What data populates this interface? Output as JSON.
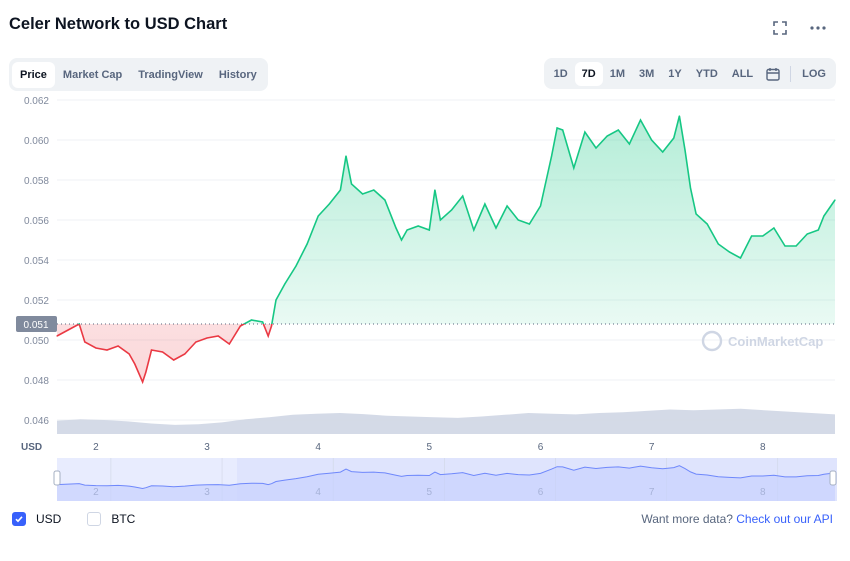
{
  "title": "Celer Network to USD Chart",
  "icons": {
    "fullscreen": "fullscreen-icon",
    "more": "more-icon",
    "calendar": "calendar-icon",
    "check": "check-icon"
  },
  "tabs": [
    {
      "label": "Price",
      "active": true
    },
    {
      "label": "Market Cap",
      "active": false
    },
    {
      "label": "TradingView",
      "active": false
    },
    {
      "label": "History",
      "active": false
    }
  ],
  "ranges": [
    {
      "label": "1D",
      "active": false
    },
    {
      "label": "7D",
      "active": true
    },
    {
      "label": "1M",
      "active": false
    },
    {
      "label": "3M",
      "active": false
    },
    {
      "label": "1Y",
      "active": false
    },
    {
      "label": "YTD",
      "active": false
    },
    {
      "label": "ALL",
      "active": false
    }
  ],
  "log_label": "LOG",
  "currencies": [
    {
      "label": "USD",
      "checked": true
    },
    {
      "label": "BTC",
      "checked": false
    }
  ],
  "footer": {
    "text": "Want more data?",
    "link": "Check out our API"
  },
  "watermark": "CoinMarketCap",
  "colors": {
    "up": "#16c784",
    "down": "#ea3943",
    "accent": "#3861fb",
    "volume": "#cfd6e4"
  },
  "chart_data": {
    "type": "line",
    "currency_label": "USD",
    "x_ticks": [
      2,
      3,
      4,
      5,
      6,
      7,
      8
    ],
    "y_ticks": [
      "0.046",
      "0.048",
      "0.050",
      "0.052",
      "0.054",
      "0.056",
      "0.058",
      "0.060",
      "0.062"
    ],
    "ylim": [
      0.0453,
      0.0622
    ],
    "xlim": [
      1.65,
      8.65
    ],
    "reference_price": 0.0508,
    "reference_label": "0.051",
    "series": [
      {
        "x": [
          1.65,
          1.75,
          1.85,
          1.9,
          2.0,
          2.1,
          2.2,
          2.3,
          2.35,
          2.42,
          2.45,
          2.5,
          2.6,
          2.7,
          2.8,
          2.9,
          3.0,
          3.1,
          3.2,
          3.3,
          3.4,
          3.5,
          3.55,
          3.58,
          3.62,
          3.7,
          3.8,
          3.9,
          4.0,
          4.1,
          4.2,
          4.25,
          4.3,
          4.4,
          4.5,
          4.6,
          4.7,
          4.75,
          4.8,
          4.9,
          5.0,
          5.05,
          5.1,
          5.2,
          5.3,
          5.4,
          5.5,
          5.6,
          5.7,
          5.8,
          5.9,
          6.0,
          6.1,
          6.15,
          6.2,
          6.3,
          6.4,
          6.5,
          6.6,
          6.7,
          6.8,
          6.9,
          7.0,
          7.1,
          7.2,
          7.25,
          7.3,
          7.35,
          7.4,
          7.5,
          7.6,
          7.7,
          7.8,
          7.9,
          8.0,
          8.1,
          8.2,
          8.3,
          8.4,
          8.5,
          8.55,
          8.65
        ],
        "y": [
          0.0502,
          0.0505,
          0.0508,
          0.0499,
          0.0496,
          0.0495,
          0.0497,
          0.0493,
          0.0488,
          0.0479,
          0.0484,
          0.0495,
          0.0494,
          0.049,
          0.0493,
          0.0499,
          0.0501,
          0.0502,
          0.0498,
          0.0507,
          0.051,
          0.0509,
          0.0502,
          0.0507,
          0.052,
          0.0528,
          0.0537,
          0.0548,
          0.0562,
          0.0568,
          0.0575,
          0.0592,
          0.0578,
          0.0573,
          0.0575,
          0.057,
          0.0556,
          0.055,
          0.0555,
          0.0557,
          0.0555,
          0.0575,
          0.056,
          0.0565,
          0.0572,
          0.0555,
          0.0568,
          0.0556,
          0.0567,
          0.056,
          0.0558,
          0.0567,
          0.0592,
          0.0606,
          0.0605,
          0.0586,
          0.0604,
          0.0596,
          0.0602,
          0.0605,
          0.0598,
          0.061,
          0.06,
          0.0594,
          0.0601,
          0.0612,
          0.0595,
          0.0576,
          0.0563,
          0.0558,
          0.0548,
          0.0544,
          0.0541,
          0.0552,
          0.0552,
          0.0556,
          0.0547,
          0.0547,
          0.0553,
          0.0555,
          0.0562,
          0.057
        ]
      }
    ],
    "volume": [
      0.38,
      0.42,
      0.4,
      0.36,
      0.3,
      0.26,
      0.28,
      0.33,
      0.42,
      0.48,
      0.55,
      0.58,
      0.6,
      0.57,
      0.52,
      0.5,
      0.48,
      0.46,
      0.5,
      0.55,
      0.6,
      0.58,
      0.56,
      0.6,
      0.62,
      0.66,
      0.7,
      0.68,
      0.7,
      0.72,
      0.68,
      0.64,
      0.6,
      0.56
    ],
    "navigator_x_ticks": [
      2,
      3,
      4,
      5,
      6,
      7,
      8
    ]
  }
}
